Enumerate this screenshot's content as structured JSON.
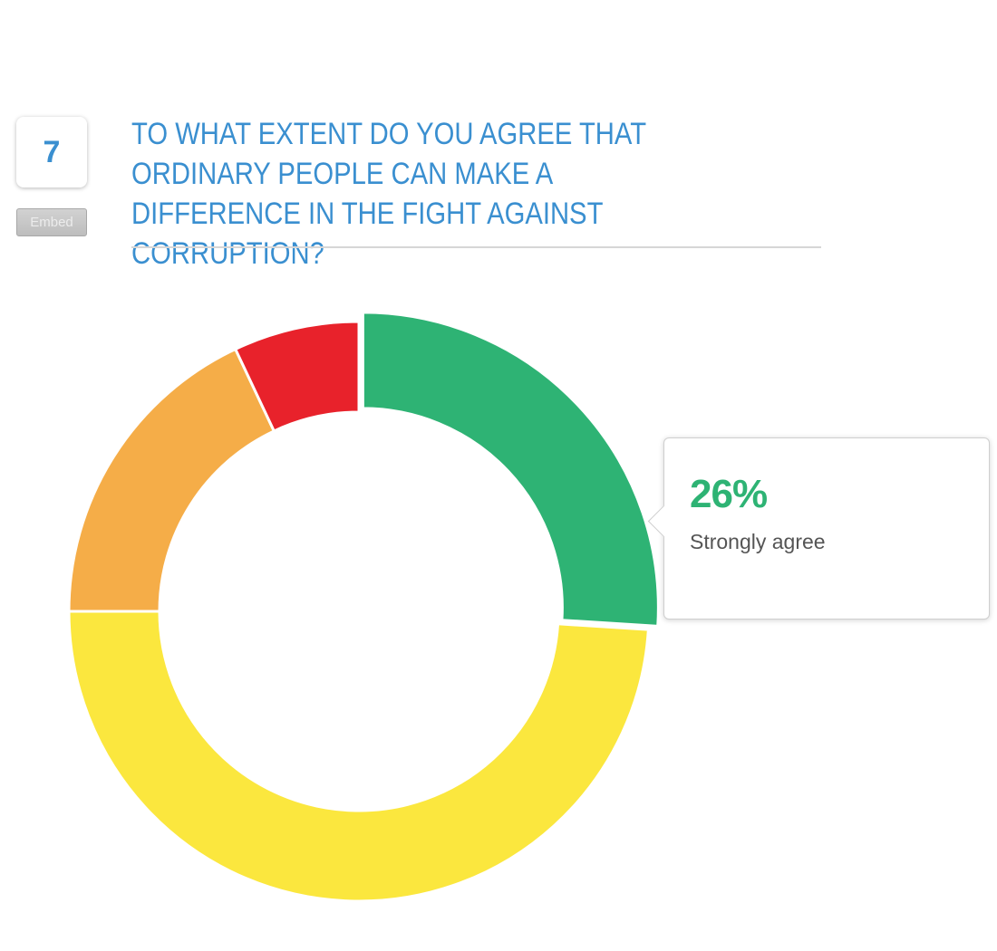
{
  "question": {
    "number": "7",
    "embed_label": "Embed",
    "title": "To what extent do you agree that ordinary people can make a difference in the fight against corruption?"
  },
  "chart_data": {
    "type": "pie",
    "categories": [
      "Strongly agree",
      "",
      "",
      ""
    ],
    "values": [
      26,
      49,
      18,
      7
    ],
    "colors": [
      "#2eb374",
      "#fbe73e",
      "#f5ad48",
      "#e8222b"
    ],
    "donut": true,
    "highlighted_index": 0
  },
  "tooltip": {
    "value": "26%",
    "label": "Strongly agree"
  }
}
